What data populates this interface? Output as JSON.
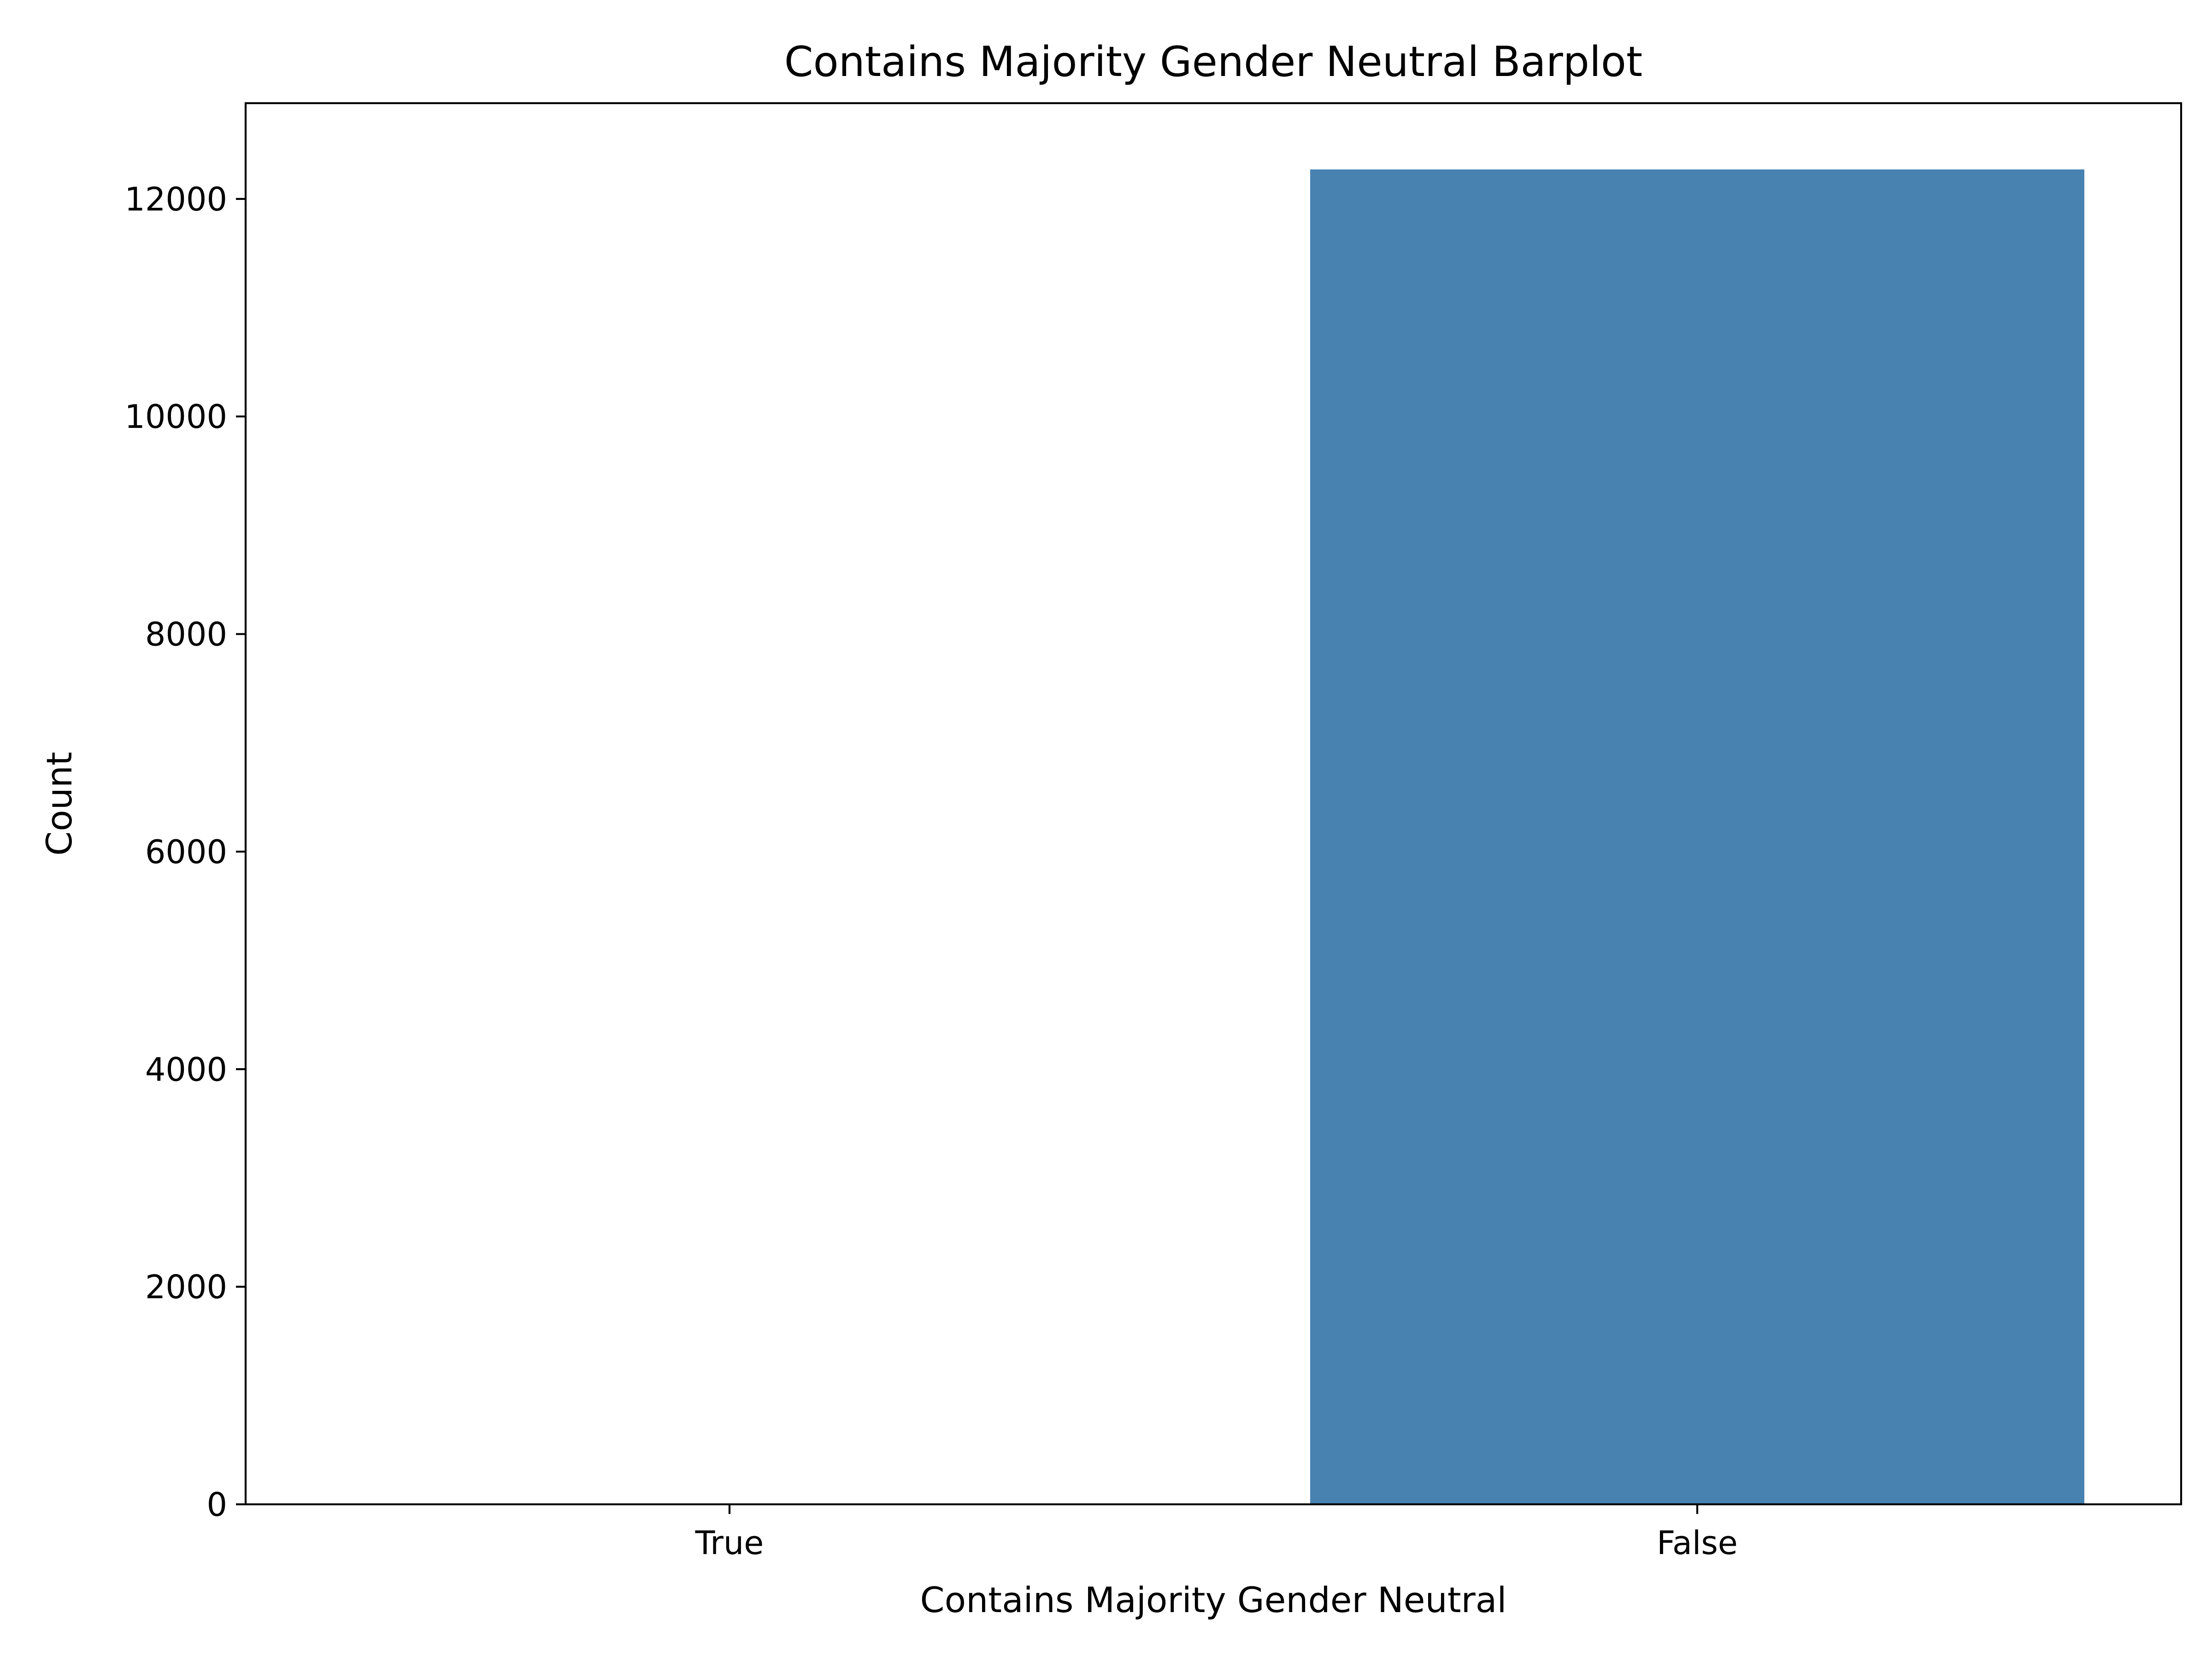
{
  "chart_data": {
    "type": "bar",
    "title": "Contains Majority Gender Neutral Barplot",
    "xlabel": "Contains Majority Gender Neutral",
    "ylabel": "Count",
    "categories": [
      "True",
      "False"
    ],
    "values": [
      0,
      12271
    ],
    "ylim": [
      0,
      12880
    ],
    "yticks": [
      0,
      2000,
      4000,
      6000,
      8000,
      10000,
      12000
    ],
    "ytick_labels": [
      "0",
      "2000",
      "4000",
      "6000",
      "8000",
      "10000",
      "12000"
    ],
    "bar_color": "#4882B0",
    "grid": false,
    "legend": "none"
  }
}
